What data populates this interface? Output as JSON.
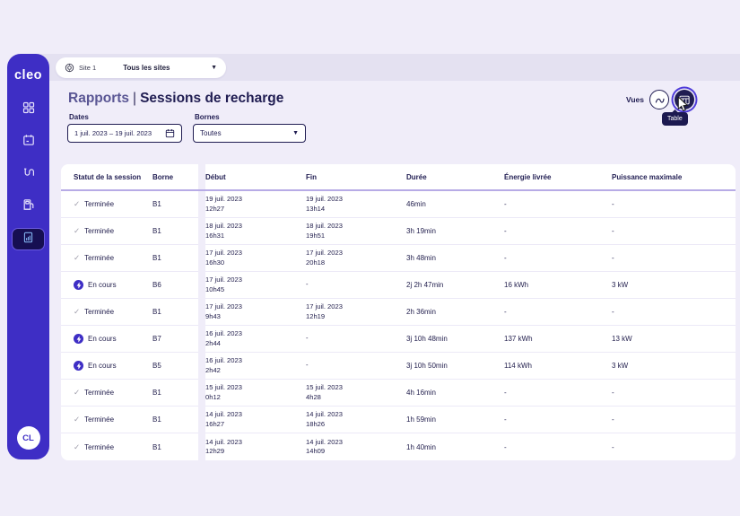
{
  "app": {
    "logo_text": "cleo",
    "avatar_initials": "CL"
  },
  "sidebar": {
    "items": [
      {
        "icon": "dashboard-icon"
      },
      {
        "icon": "calendar-icon"
      },
      {
        "icon": "charging-cable-icon"
      },
      {
        "icon": "charging-station-icon"
      },
      {
        "icon": "reports-icon",
        "selected": true
      }
    ]
  },
  "topbar": {
    "site_label": "Site 1",
    "site_selected_value": "Tous les sites"
  },
  "header": {
    "breadcrumb": "Rapports",
    "separator": "|",
    "title": "Sessions de recharge",
    "views_label": "Vues",
    "tooltip": "Table"
  },
  "filters": {
    "dates_label": "Dates",
    "dates_value": "1 juil. 2023 – 19 juil. 2023",
    "bornes_label": "Bornes",
    "bornes_value": "Toutes"
  },
  "table": {
    "columns": [
      "Statut de la session",
      "Borne",
      "Début",
      "Fin",
      "Durée",
      "Énergie livrée",
      "Puissance maximale"
    ],
    "rows": [
      {
        "status": "Terminée",
        "status_type": "done",
        "borne": "B1",
        "debut_date": "19 juil. 2023",
        "debut_time": "12h27",
        "fin_date": "19 juil. 2023",
        "fin_time": "13h14",
        "duree": "46min",
        "energie": "-",
        "puissance": "-"
      },
      {
        "status": "Terminée",
        "status_type": "done",
        "borne": "B1",
        "debut_date": "18 juil. 2023",
        "debut_time": "16h31",
        "fin_date": "18 juil. 2023",
        "fin_time": "19h51",
        "duree": "3h 19min",
        "energie": "-",
        "puissance": "-"
      },
      {
        "status": "Terminée",
        "status_type": "done",
        "borne": "B1",
        "debut_date": "17 juil. 2023",
        "debut_time": "16h30",
        "fin_date": "17 juil. 2023",
        "fin_time": "20h18",
        "duree": "3h 48min",
        "energie": "-",
        "puissance": "-"
      },
      {
        "status": "En cours",
        "status_type": "active",
        "borne": "B6",
        "debut_date": "17 juil. 2023",
        "debut_time": "10h45",
        "fin_date": "-",
        "fin_time": "",
        "duree": "2j 2h 47min",
        "energie": "16 kWh",
        "puissance": "3 kW"
      },
      {
        "status": "Terminée",
        "status_type": "done",
        "borne": "B1",
        "debut_date": "17 juil. 2023",
        "debut_time": "9h43",
        "fin_date": "17 juil. 2023",
        "fin_time": "12h19",
        "duree": "2h 36min",
        "energie": "-",
        "puissance": "-"
      },
      {
        "status": "En cours",
        "status_type": "active",
        "borne": "B7",
        "debut_date": "16 juil. 2023",
        "debut_time": "2h44",
        "fin_date": "-",
        "fin_time": "",
        "duree": "3j 10h 48min",
        "energie": "137 kWh",
        "puissance": "13 kW"
      },
      {
        "status": "En cours",
        "status_type": "active",
        "borne": "B5",
        "debut_date": "16 juil. 2023",
        "debut_time": "2h42",
        "fin_date": "-",
        "fin_time": "",
        "duree": "3j 10h 50min",
        "energie": "114 kWh",
        "puissance": "3 kW"
      },
      {
        "status": "Terminée",
        "status_type": "done",
        "borne": "B1",
        "debut_date": "15 juil. 2023",
        "debut_time": "0h12",
        "fin_date": "15 juil. 2023",
        "fin_time": "4h28",
        "duree": "4h 16min",
        "energie": "-",
        "puissance": "-"
      },
      {
        "status": "Terminée",
        "status_type": "done",
        "borne": "B1",
        "debut_date": "14 juil. 2023",
        "debut_time": "16h27",
        "fin_date": "14 juil. 2023",
        "fin_time": "18h26",
        "duree": "1h 59min",
        "energie": "-",
        "puissance": "-"
      },
      {
        "status": "Terminée",
        "status_type": "done",
        "borne": "B1",
        "debut_date": "14 juil. 2023",
        "debut_time": "12h29",
        "fin_date": "14 juil. 2023",
        "fin_time": "14h09",
        "duree": "1h 40min",
        "energie": "-",
        "puissance": "-"
      }
    ]
  },
  "colors": {
    "sidebar": "#3E2EC5",
    "navy": "#201D52",
    "background": "#F0EDF9",
    "topstrip": "#E4E1F1",
    "header_rule": "#B7ABE6",
    "row_border": "#ECE9F7",
    "selected_item_bg": "#160F52",
    "selected_item_icon": "#7FB0EC",
    "active_badge": "#3E2EC5"
  }
}
